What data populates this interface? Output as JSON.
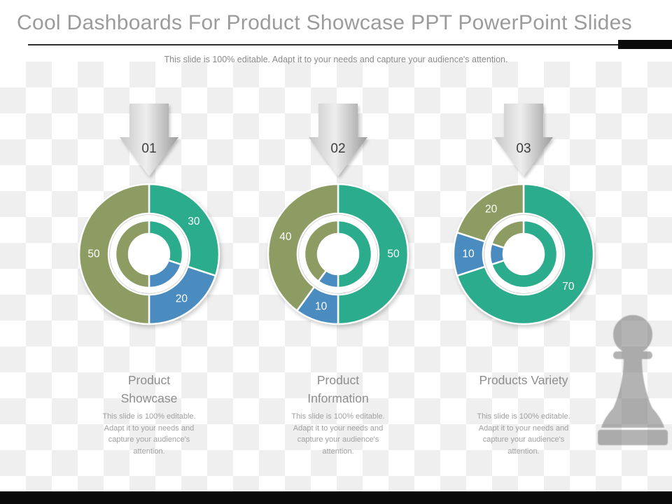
{
  "title": "Cool Dashboards For Product Showcase PPT PowerPoint Slides",
  "subtitle": "This slide is 100% editable. Adapt it to your needs and capture your audience's attention.",
  "colors": {
    "olive": "#8d9c62",
    "teal": "#2bac8c",
    "blue": "#4a8bc0"
  },
  "chart_data": [
    {
      "type": "pie",
      "variant": "double-donut",
      "arrow_label": "01",
      "heading": "Product Showcase",
      "body": "This slide is 100% editable. Adapt it to your needs and capture your audience's attention.",
      "start_angle": "top",
      "direction": "clockwise",
      "segments": [
        {
          "value": 30,
          "color": "teal"
        },
        {
          "value": 20,
          "color": "blue"
        },
        {
          "value": 50,
          "color": "olive"
        }
      ]
    },
    {
      "type": "pie",
      "variant": "double-donut",
      "arrow_label": "02",
      "heading": "Product Information",
      "body": "This slide is 100% editable. Adapt it to your needs and capture your audience's attention.",
      "start_angle": "top",
      "direction": "clockwise",
      "segments": [
        {
          "value": 50,
          "color": "teal"
        },
        {
          "value": 10,
          "color": "blue"
        },
        {
          "value": 40,
          "color": "olive"
        }
      ]
    },
    {
      "type": "pie",
      "variant": "double-donut",
      "arrow_label": "03",
      "heading": "Products Variety",
      "body": "This slide is 100% editable. Adapt it to your needs and capture your audience's attention.",
      "start_angle": "top",
      "direction": "clockwise",
      "segments": [
        {
          "value": 70,
          "color": "teal"
        },
        {
          "value": 10,
          "color": "blue"
        },
        {
          "value": 20,
          "color": "olive"
        }
      ]
    }
  ]
}
